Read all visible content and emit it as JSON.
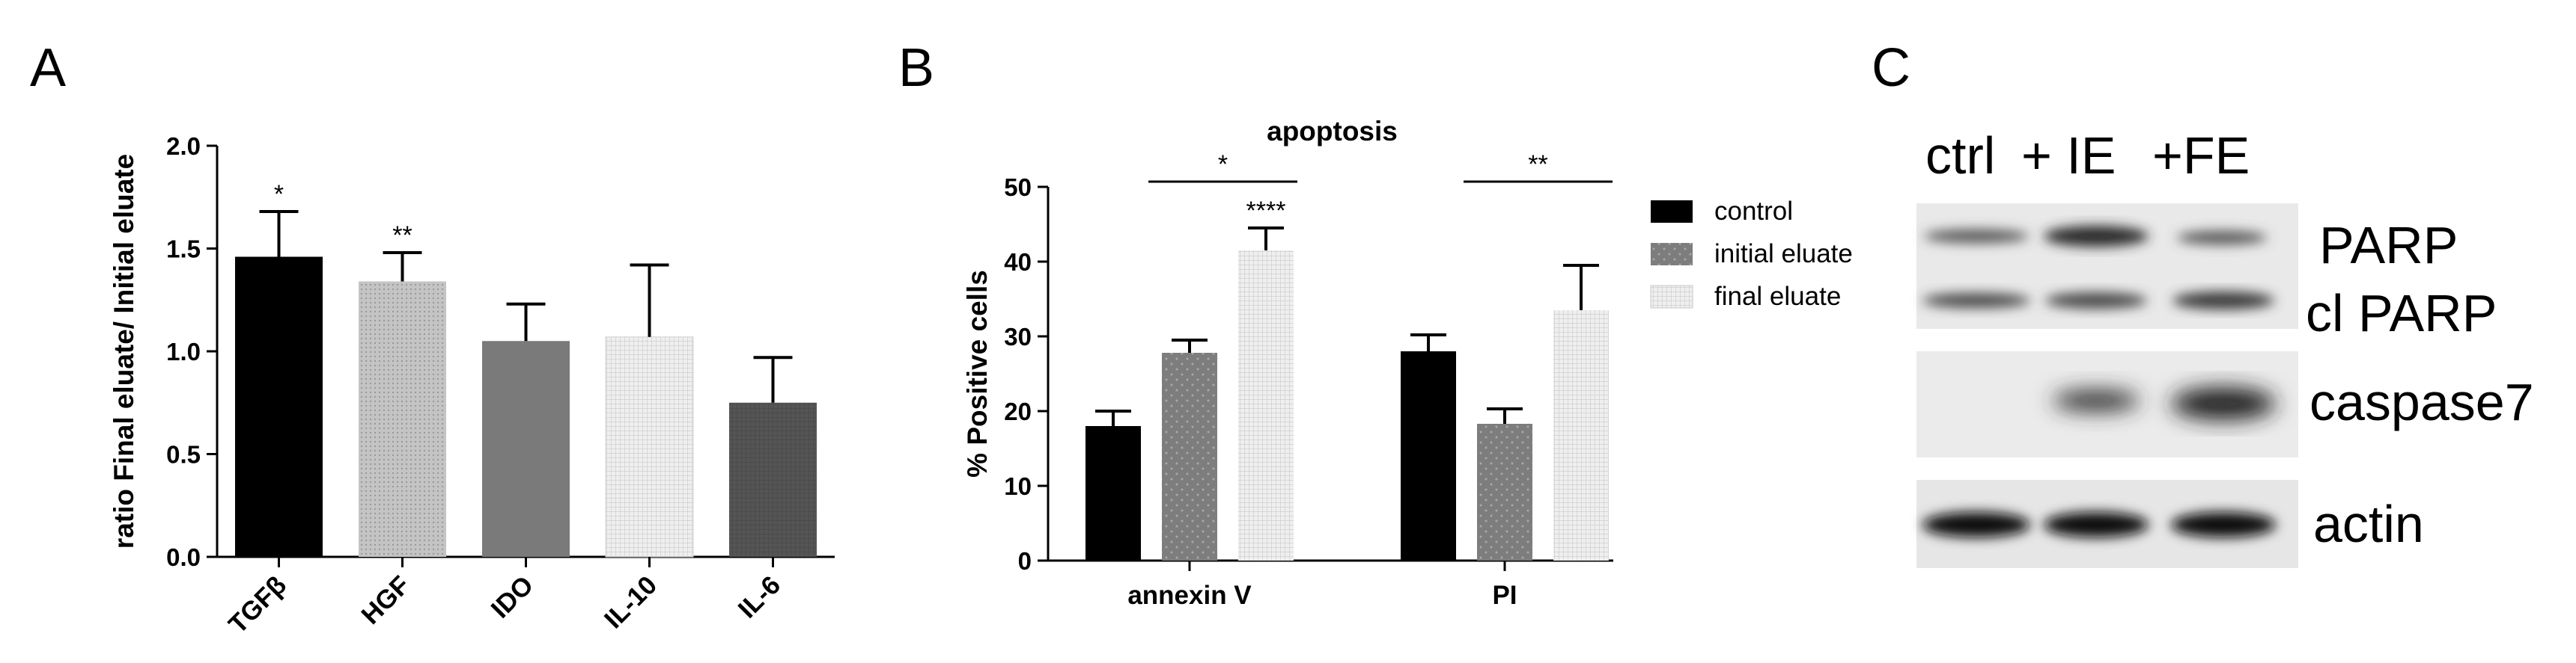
{
  "panels": {
    "a": {
      "letter": "A"
    },
    "b": {
      "letter": "B"
    },
    "c": {
      "letter": "C"
    }
  },
  "chart_data": [
    {
      "type": "bar",
      "panel": "A",
      "title": "",
      "xlabel": "",
      "ylabel": "ratio Final eluate/ Initial eluate",
      "ylim": [
        0,
        2.0
      ],
      "yticks": [
        "0.0",
        "0.5",
        "1.0",
        "1.5",
        "2.0"
      ],
      "categories": [
        "TGFβ",
        "HGF",
        "IDO",
        "IL-10",
        "IL-6"
      ],
      "values": [
        1.46,
        1.34,
        1.05,
        1.07,
        0.75
      ],
      "errors": [
        0.22,
        0.14,
        0.18,
        0.35,
        0.22
      ],
      "significance": [
        "*",
        "**",
        "",
        "",
        ""
      ],
      "colors": [
        "#000000",
        "#b5b5b5",
        "#7a7a7a",
        "#e6e6e6",
        "#555555"
      ],
      "grid": false
    },
    {
      "type": "bar",
      "panel": "B",
      "title": "apoptosis",
      "xlabel": "",
      "ylabel": "% Positive cells",
      "ylim": [
        0,
        50
      ],
      "yticks": [
        "0",
        "10",
        "20",
        "30",
        "40",
        "50"
      ],
      "categories": [
        "annexin V",
        "PI"
      ],
      "series": [
        {
          "name": "control",
          "values": [
            18.0,
            28.0
          ],
          "errors": [
            2.0,
            2.2
          ],
          "color": "#000000"
        },
        {
          "name": "initial eluate",
          "values": [
            27.8,
            18.3
          ],
          "errors": [
            1.7,
            2.0
          ],
          "color": "#7d7d7d"
        },
        {
          "name": "final eluate",
          "values": [
            41.5,
            33.5
          ],
          "errors": [
            3.0,
            6.0
          ],
          "color": "#d4d4d4"
        }
      ],
      "brackets": [
        {
          "category": "annexin V",
          "label": "*"
        },
        {
          "category": "PI",
          "label": "**"
        }
      ],
      "bar_annotations": [
        {
          "category": "annexin V",
          "series": "final eluate",
          "label": "****"
        }
      ],
      "legend_position": "right",
      "grid": false
    }
  ],
  "blot": {
    "lanes": [
      "ctrl",
      "+ IE",
      "+FE"
    ],
    "bands": [
      "PARP",
      "cl PARP",
      "caspase7",
      "actin"
    ]
  }
}
